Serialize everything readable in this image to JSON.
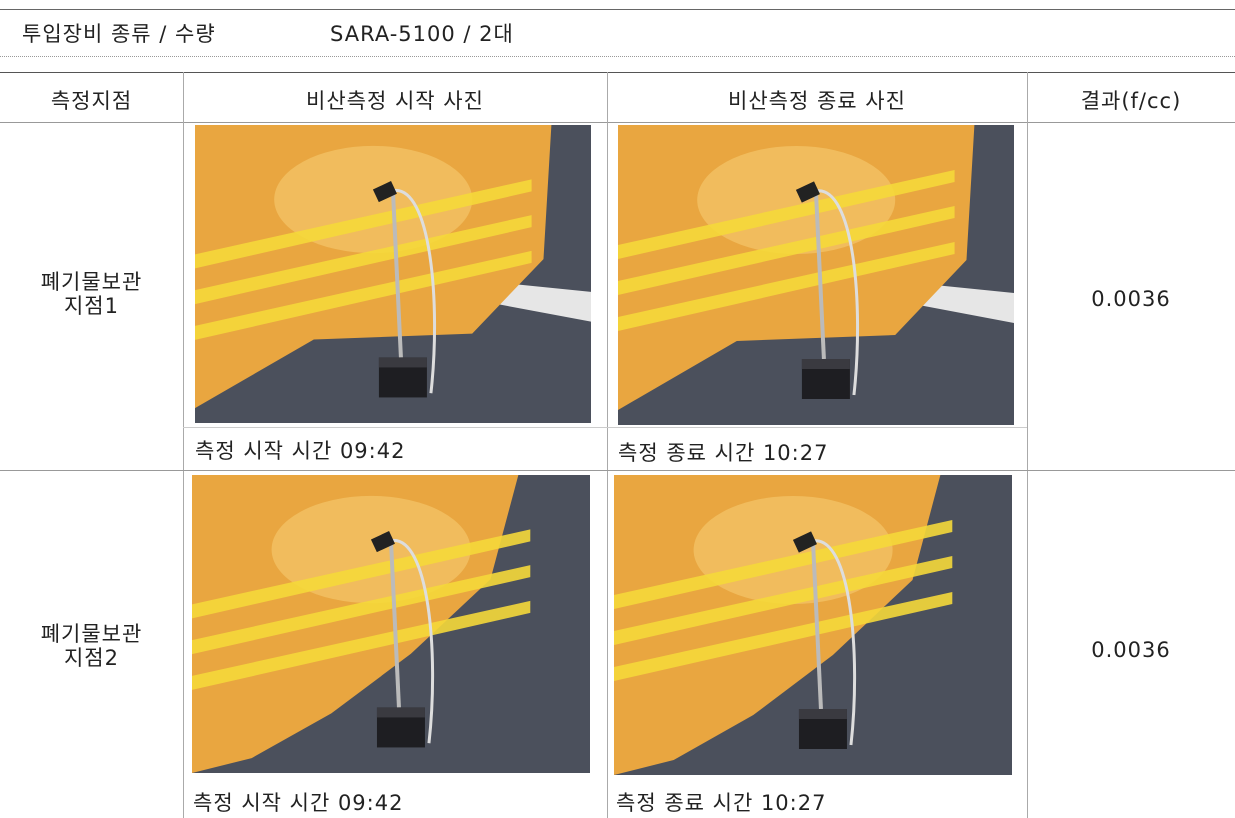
{
  "header": {
    "label": "투입장비 종류 / 수량",
    "value": "SARA-5100 / 2대"
  },
  "table": {
    "columns": [
      "측정지점",
      "비산측정 시작 사진",
      "비산측정 종료 사진",
      "결과(f/cc)"
    ],
    "rows": [
      {
        "location": [
          "폐기물보관",
          "지점1"
        ],
        "start_caption": "측정 시작 시간 09:42",
        "end_caption": "측정 종료 시간 10:27",
        "result": "0.0036"
      },
      {
        "location": [
          "폐기물보관",
          "지점2"
        ],
        "start_caption": "측정 시작 시간 09:42",
        "end_caption": "측정 종료 시간 10:27",
        "result": "0.0036"
      }
    ]
  }
}
